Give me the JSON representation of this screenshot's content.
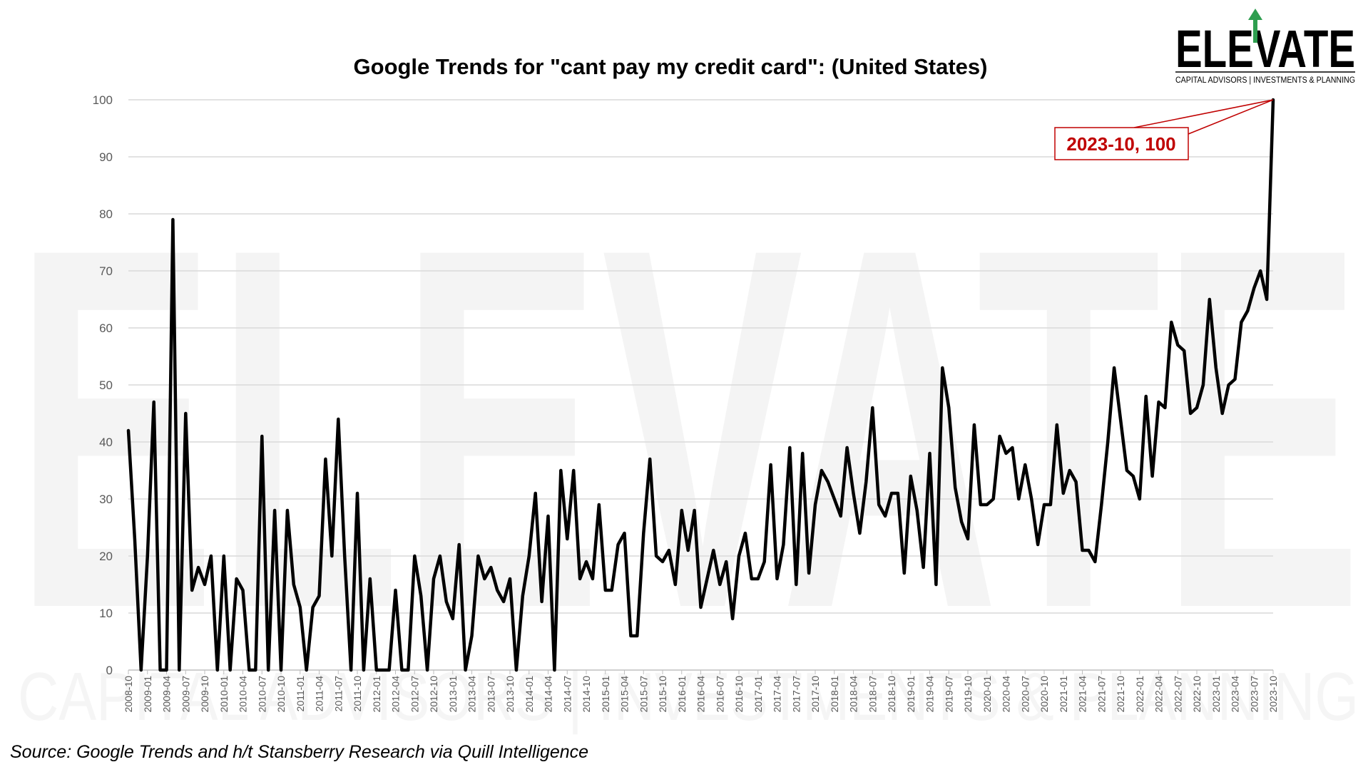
{
  "logo": {
    "word": "ELEVATE",
    "tagline": "CAPITAL ADVISORS | INVESTMENTS & PLANNING",
    "accent_color": "#2e9e4f"
  },
  "source_note": "Source: Google Trends and h/t Stansberry Research via Quill Intelligence",
  "colors": {
    "line": "#000000",
    "grid": "#d9d9d9",
    "annotation": "#c00000"
  },
  "chart_data": {
    "type": "line",
    "title": "Google Trends for \"cant pay my credit card\": (United States)",
    "xlabel": "",
    "ylabel": "",
    "ylim": [
      0,
      100
    ],
    "yticks": [
      0,
      10,
      20,
      30,
      40,
      50,
      60,
      70,
      80,
      90,
      100
    ],
    "grid": "horizontal",
    "x_tick_labels": [
      "2008-10",
      "2009-01",
      "2009-04",
      "2009-07",
      "2009-10",
      "2010-01",
      "2010-04",
      "2010-07",
      "2010-10",
      "2011-01",
      "2011-04",
      "2011-07",
      "2011-10",
      "2012-01",
      "2012-04",
      "2012-07",
      "2012-10",
      "2013-01",
      "2013-04",
      "2013-07",
      "2013-10",
      "2014-01",
      "2014-04",
      "2014-07",
      "2014-10",
      "2015-01",
      "2015-04",
      "2015-07",
      "2015-10",
      "2016-01",
      "2016-04",
      "2016-07",
      "2016-10",
      "2017-01",
      "2017-04",
      "2017-07",
      "2017-10",
      "2018-01",
      "2018-04",
      "2018-07",
      "2018-10",
      "2019-01",
      "2019-04",
      "2019-07",
      "2019-10",
      "2020-01",
      "2020-04",
      "2020-07",
      "2020-10",
      "2021-01",
      "2021-04",
      "2021-07",
      "2021-10",
      "2022-01",
      "2022-04",
      "2022-07",
      "2022-10",
      "2023-01",
      "2023-04",
      "2023-07",
      "2023-10"
    ],
    "x_start": "2008-10",
    "x_end": "2023-10",
    "values": [
      42,
      23,
      0,
      20,
      47,
      0,
      0,
      79,
      0,
      45,
      14,
      18,
      15,
      20,
      0,
      20,
      0,
      16,
      14,
      0,
      0,
      41,
      0,
      28,
      0,
      28,
      15,
      11,
      0,
      11,
      13,
      37,
      20,
      44,
      20,
      0,
      31,
      0,
      16,
      0,
      0,
      0,
      14,
      0,
      0,
      20,
      13,
      0,
      16,
      20,
      12,
      9,
      22,
      0,
      6,
      20,
      16,
      18,
      14,
      12,
      16,
      0,
      13,
      20,
      31,
      12,
      27,
      0,
      35,
      23,
      35,
      16,
      19,
      16,
      29,
      14,
      14,
      22,
      24,
      6,
      6,
      24,
      37,
      20,
      19,
      21,
      15,
      28,
      21,
      28,
      11,
      16,
      21,
      15,
      19,
      9,
      20,
      24,
      16,
      16,
      19,
      36,
      16,
      22,
      39,
      15,
      38,
      17,
      29,
      35,
      33,
      30,
      27,
      39,
      31,
      24,
      33,
      46,
      29,
      27,
      31,
      31,
      17,
      34,
      28,
      18,
      38,
      15,
      53,
      46,
      32,
      26,
      23,
      43,
      29,
      29,
      30,
      41,
      38,
      39,
      30,
      36,
      30,
      22,
      29,
      29,
      43,
      31,
      35,
      33,
      21,
      21,
      19,
      29,
      40,
      53,
      44,
      35,
      34,
      30,
      48,
      34,
      47,
      46,
      61,
      57,
      56,
      45,
      46,
      50,
      65,
      53,
      45,
      50,
      51,
      61,
      63,
      67,
      70,
      65,
      100
    ],
    "annotation": {
      "label": "2023-10, 100",
      "x": "2023-10",
      "y": 100
    }
  }
}
